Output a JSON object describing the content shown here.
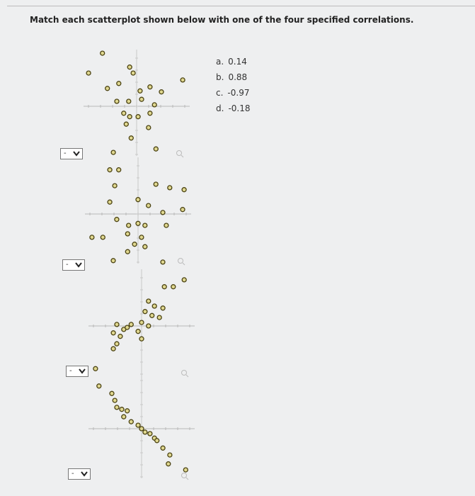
{
  "question": "Match each scatterplot shown below with one of the four specified correlations.",
  "options": [
    {
      "label": "a.",
      "value": "0.14"
    },
    {
      "label": "b.",
      "value": "0.88"
    },
    {
      "label": "c.",
      "value": "-0.97"
    },
    {
      "label": "d.",
      "value": "-0.18"
    }
  ],
  "dropdowns": [
    "-",
    "-",
    "-",
    "-"
  ],
  "plots": [
    {
      "x": [
        -0.69,
        -0.97,
        -0.14,
        -0.07,
        -0.36,
        -0.59,
        0.27,
        0.07,
        0.5,
        0.93,
        -0.4,
        -0.16,
        0.1,
        0.36,
        -0.26,
        -0.14,
        0.03,
        0.27,
        -0.21,
        0.24,
        -0.11,
        0.39,
        -0.47
      ],
      "y": [
        1.07,
        0.67,
        0.79,
        0.67,
        0.46,
        0.36,
        0.39,
        0.31,
        0.29,
        0.53,
        0.1,
        0.1,
        0.14,
        0.03,
        -0.14,
        -0.21,
        -0.21,
        -0.14,
        -0.36,
        -0.43,
        -0.64,
        -0.86,
        -0.93
      ]
    },
    {
      "x": [
        -0.57,
        -0.39,
        -0.47,
        0.36,
        0.64,
        0.93,
        -0.57,
        0,
        0.21,
        0.5,
        0.9,
        -0.43,
        -0.19,
        0,
        0.14,
        0.57,
        -0.21,
        0.07,
        -0.07,
        -0.93,
        -0.71,
        -0.21,
        0.14,
        -0.5,
        0.5
      ],
      "y": [
        0.89,
        0.89,
        0.57,
        0.6,
        0.53,
        0.49,
        0.24,
        0.29,
        0.17,
        0.03,
        0.09,
        -0.11,
        -0.23,
        -0.19,
        -0.23,
        -0.23,
        -0.4,
        -0.47,
        -0.61,
        -0.47,
        -0.47,
        -0.76,
        -0.66,
        -0.94,
        -0.97
      ]
    },
    {
      "x": [
        0.86,
        0.64,
        0.46,
        0.14,
        0.26,
        0.43,
        0.07,
        0.21,
        0.36,
        0,
        0.14,
        -0.21,
        -0.5,
        -0.36,
        -0.07,
        -0.57,
        -0.43,
        0,
        -0.5,
        -0.57,
        -0.29
      ],
      "y": [
        0.93,
        0.79,
        0.79,
        0.5,
        0.4,
        0.36,
        0.29,
        0.21,
        0.17,
        0.07,
        0,
        0.03,
        0.03,
        -0.07,
        -0.11,
        -0.14,
        -0.21,
        -0.26,
        -0.36,
        -0.46,
        -0.03
      ]
    },
    {
      "x": [
        -0.93,
        -0.86,
        -0.6,
        -0.54,
        -0.5,
        -0.4,
        -0.29,
        -0.36,
        -0.21,
        -0.07,
        0,
        0.07,
        0.17,
        0.26,
        0.31,
        0.43,
        0.57,
        0.54,
        0.89
      ],
      "y": [
        1.21,
        0.86,
        0.71,
        0.57,
        0.43,
        0.39,
        0.36,
        0.24,
        0.14,
        0.07,
        0,
        -0.07,
        -0.1,
        -0.19,
        -0.24,
        -0.39,
        -0.53,
        -0.71,
        -0.83
      ]
    }
  ]
}
